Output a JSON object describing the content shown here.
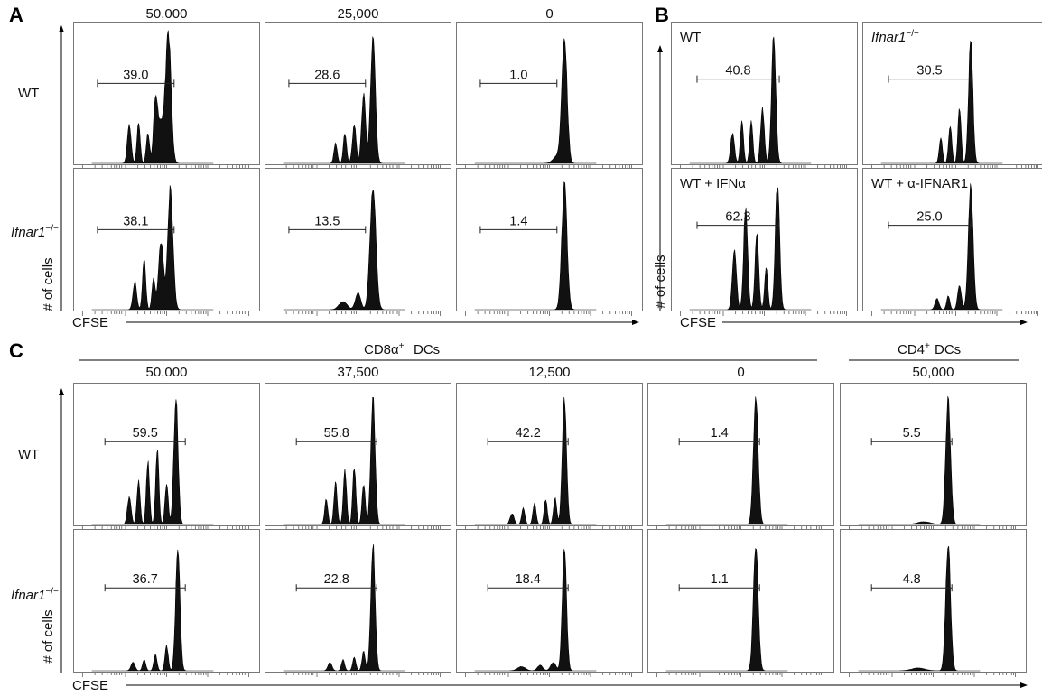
{
  "panels": {
    "A": {
      "letter": "A",
      "columns": [
        "50,000",
        "25,000",
        "0"
      ],
      "rows": [
        "WT",
        "Ifnar1"
      ],
      "row_superscripts": [
        "",
        "−/−"
      ],
      "ylabel": "# of cells",
      "xlabel": "CFSE",
      "gates": [
        [
          "39.0",
          "28.6",
          "1.0"
        ],
        [
          "38.1",
          "13.5",
          "1.4"
        ]
      ]
    },
    "B": {
      "letter": "B",
      "ylabel": "# of cells",
      "xlabel": "CFSE",
      "titles": [
        [
          "WT",
          "Ifnar1"
        ],
        [
          "WT + IFNα",
          "WT + α-IFNAR1"
        ]
      ],
      "title_superscripts": [
        [
          "",
          "−/−"
        ],
        [
          "",
          ""
        ]
      ],
      "gates": [
        [
          "40.8",
          "30.5"
        ],
        [
          "62.3",
          "25.0"
        ]
      ]
    },
    "C": {
      "letter": "C",
      "group1": "CD8α",
      "group1_sup": "+",
      "group1_suffix": " DCs",
      "group2": "CD4",
      "group2_sup": "+",
      "group2_suffix": " DCs",
      "columns": [
        "50,000",
        "37,500",
        "12,500",
        "0",
        "50,000"
      ],
      "rows": [
        "WT",
        "Ifnar1"
      ],
      "row_superscripts": [
        "",
        "−/−"
      ],
      "ylabel": "# of cells",
      "xlabel": "CFSE",
      "gates": [
        [
          "59.5",
          "55.8",
          "42.2",
          "1.4",
          "5.5"
        ],
        [
          "36.7",
          "22.8",
          "18.4",
          "1.1",
          "4.8"
        ]
      ]
    }
  },
  "chart_data": [
    {
      "type": "area",
      "title": "A",
      "xlabel": "CFSE",
      "ylabel": "# of cells",
      "columns": [
        "50,000",
        "25,000",
        "0"
      ],
      "rows": [
        "WT",
        "Ifnar1−/−"
      ],
      "gate_percent": [
        [
          39.0,
          28.6,
          1.0
        ],
        [
          38.1,
          13.5,
          1.4
        ]
      ]
    },
    {
      "type": "area",
      "title": "B",
      "xlabel": "CFSE",
      "ylabel": "# of cells",
      "conditions": [
        "WT",
        "Ifnar1−/−",
        "WT + IFNα",
        "WT + α-IFNAR1"
      ],
      "gate_percent": [
        40.8,
        30.5,
        62.3,
        25.0
      ]
    },
    {
      "type": "area",
      "title": "C",
      "xlabel": "CFSE",
      "ylabel": "# of cells",
      "columns": [
        "50,000",
        "37,500",
        "12,500",
        "0",
        "50,000"
      ],
      "column_groups": [
        "CD8α+ DCs",
        "CD8α+ DCs",
        "CD8α+ DCs",
        "CD8α+ DCs",
        "CD4+ DCs"
      ],
      "rows": [
        "WT",
        "Ifnar1−/−"
      ],
      "gate_percent": [
        [
          59.5,
          55.8,
          42.2,
          1.4,
          5.5
        ],
        [
          36.7,
          22.8,
          18.4,
          1.1,
          4.8
        ]
      ]
    }
  ]
}
